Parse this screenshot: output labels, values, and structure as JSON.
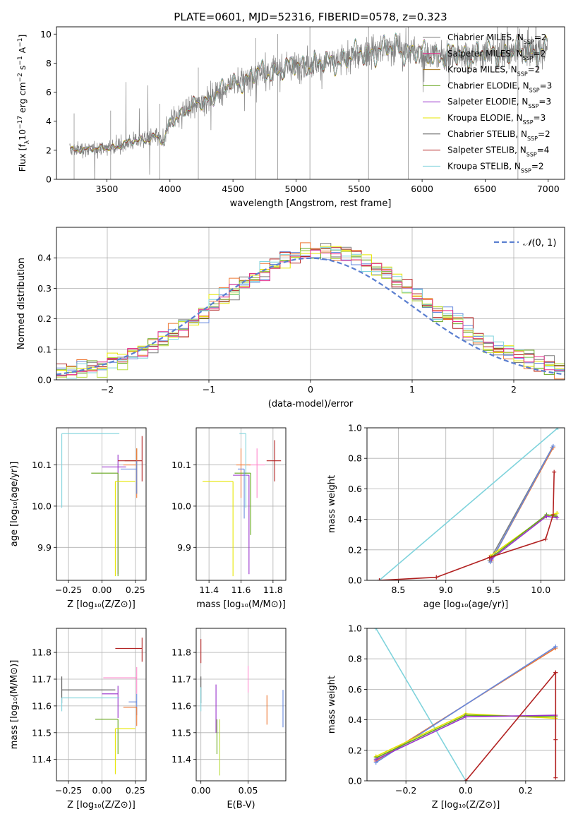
{
  "colors": {
    "Chabrier MILES": "#7f7f7f",
    "Salpeter MILES": "#e7298a",
    "Kroupa MILES": "#a6761d",
    "Chabrier ELODIE": "#66a61e",
    "Salpeter ELODIE": "#9932cc",
    "Kroupa ELODIE": "#e6e600",
    "Chabrier STELIB": "#555555",
    "Salpeter STELIB": "#b22222",
    "Kroupa STELIB": "#7fd3dc",
    "extra1": "#ee7733",
    "extra2": "#6688dd",
    "extra3": "#ff88cc",
    "extra4": "#bbdd44",
    "gauss": "#5b7fd0"
  },
  "chart_data": [
    {
      "id": "spectrum",
      "type": "line",
      "title": "PLATE=0601, MJD=52316, FIBERID=0578, z=0.323",
      "xlabel": "wavelength [Angstrom, rest frame]",
      "ylabel": "Flux [f_λ 10^-17 erg cm^-2 s^-1 A^-1]",
      "xlim": [
        3100,
        7130
      ],
      "ylim": [
        0,
        10.5
      ],
      "xticks": [
        3500,
        4000,
        4500,
        5000,
        5500,
        6000,
        6500,
        7000
      ],
      "yticks": [
        0,
        2,
        4,
        6,
        8,
        10
      ],
      "anchors_x": [
        3200,
        3300,
        3400,
        3500,
        3600,
        3700,
        3800,
        3900,
        3950,
        4000,
        4100,
        4200,
        4300,
        4400,
        4500,
        4600,
        4700,
        4800,
        4900,
        5000,
        5100,
        5200,
        5300,
        5400,
        5500,
        5600,
        5700,
        5800,
        5900,
        6000,
        6200,
        6400,
        6600,
        6800,
        7000
      ],
      "anchors_y": [
        2.0,
        2.1,
        2.05,
        2.2,
        2.3,
        2.6,
        2.8,
        2.9,
        2.4,
        4.0,
        4.6,
        5.1,
        5.5,
        6.1,
        6.6,
        6.9,
        7.3,
        7.4,
        7.6,
        7.8,
        8.0,
        7.9,
        8.1,
        8.3,
        8.6,
        8.8,
        8.9,
        9.1,
        8.8,
        8.6,
        8.5,
        8.6,
        8.7,
        8.8,
        8.9
      ],
      "legend": [
        {
          "name": "Chabrier MILES, N_SSP=2",
          "key": "Chabrier MILES"
        },
        {
          "name": "Salpeter MILES, N_SSP=2",
          "key": "Salpeter MILES"
        },
        {
          "name": "Kroupa MILES, N_SSP=2",
          "key": "Kroupa MILES"
        },
        {
          "name": "Chabrier ELODIE, N_SSP=3",
          "key": "Chabrier ELODIE"
        },
        {
          "name": "Salpeter ELODIE, N_SSP=3",
          "key": "Salpeter ELODIE"
        },
        {
          "name": "Kroupa ELODIE, N_SSP=3",
          "key": "Kroupa ELODIE"
        },
        {
          "name": "Chabrier STELIB, N_SSP=2",
          "key": "Chabrier STELIB"
        },
        {
          "name": "Salpeter STELIB, N_SSP=4",
          "key": "Salpeter STELIB"
        },
        {
          "name": "Kroupa STELIB, N_SSP=2",
          "key": "Kroupa STELIB"
        }
      ]
    },
    {
      "id": "residuals",
      "type": "histogram",
      "xlabel": "(data-model)/error",
      "ylabel": "Normed distribution",
      "xlim": [
        -2.5,
        2.5
      ],
      "ylim": [
        0,
        0.5
      ],
      "xticks": [
        -2,
        -1,
        0,
        1,
        2
      ],
      "yticks": [
        0.0,
        0.1,
        0.2,
        0.3,
        0.4
      ],
      "legend": "N(0,1)",
      "bin_width": 0.1,
      "bin_start": -2.5
    },
    {
      "id": "age_Z",
      "type": "errorbar",
      "xlabel": "Z [log10(Z/Z⊙)]",
      "ylabel": "age [log10(age/yr)]",
      "xlim": [
        -0.34,
        0.33
      ],
      "ylim": [
        9.82,
        10.19
      ],
      "xticks": [
        -0.25,
        0.0,
        0.25
      ],
      "yticks": [
        9.9,
        10.0,
        10.1
      ],
      "points": [
        {
          "x": -0.3,
          "y": 10.176,
          "xerr": [
            0.0,
            0.43
          ],
          "yerr": [
            0.18,
            0.0
          ],
          "key": "Kroupa STELIB"
        },
        {
          "x": 0.26,
          "y": 10.11,
          "xerr": [
            0.09,
            0.0
          ],
          "yerr": [
            0.08,
            0.03
          ],
          "key": "Kroupa MILES"
        },
        {
          "x": 0.12,
          "y": 10.095,
          "xerr": [
            0.12,
            0.06
          ],
          "yerr": [
            0.26,
            0.03
          ],
          "key": "Salpeter ELODIE"
        },
        {
          "x": 0.12,
          "y": 10.08,
          "xerr": [
            0.2,
            0.0
          ],
          "yerr": [
            0.25,
            0.0
          ],
          "key": "Chabrier ELODIE"
        },
        {
          "x": 0.1,
          "y": 10.06,
          "xerr": [
            0.0,
            0.15
          ],
          "yerr": [
            0.23,
            0.0
          ],
          "key": "Kroupa ELODIE"
        },
        {
          "x": 0.3,
          "y": 10.11,
          "xerr": [
            0.18,
            0.0
          ],
          "yerr": [
            0.05,
            0.06
          ],
          "key": "Salpeter STELIB"
        },
        {
          "x": 0.26,
          "y": 10.1,
          "xerr": [
            0.1,
            0.0
          ],
          "yerr": [
            0.08,
            0.04
          ],
          "key": "extra1"
        },
        {
          "x": 0.26,
          "y": 10.09,
          "xerr": [
            0.12,
            0.0
          ],
          "yerr": [
            0.06,
            0.02
          ],
          "key": "extra2"
        }
      ]
    },
    {
      "id": "age_mass",
      "type": "errorbar",
      "xlabel": "mass [log10(M/M⊙)]",
      "yticks": [
        9.9,
        10.0,
        10.1
      ],
      "xticks": [
        11.4,
        11.6,
        11.8
      ],
      "xlim": [
        11.32,
        11.88
      ],
      "ylim": [
        9.82,
        10.19
      ],
      "points": [
        {
          "x": 11.81,
          "y": 10.11,
          "xerr": [
            0.05,
            0.04
          ],
          "yerr": [
            0.05,
            0.05
          ],
          "key": "Salpeter STELIB"
        },
        {
          "x": 11.7,
          "y": 10.1,
          "xerr": [
            0.05,
            0.05
          ],
          "yerr": [
            0.08,
            0.04
          ],
          "key": "extra3"
        },
        {
          "x": 11.65,
          "y": 10.075,
          "xerr": [
            0.1,
            0.0
          ],
          "yerr": [
            0.24,
            0.0
          ],
          "key": "Salpeter ELODIE"
        },
        {
          "x": 11.6,
          "y": 10.1,
          "xerr": [
            0.03,
            0.06
          ],
          "yerr": [
            0.08,
            0.04
          ],
          "key": "extra1"
        },
        {
          "x": 11.63,
          "y": 10.176,
          "xerr": [
            0.04,
            0.0
          ],
          "yerr": [
            0.18,
            0.0
          ],
          "key": "Kroupa STELIB"
        },
        {
          "x": 11.55,
          "y": 10.06,
          "xerr": [
            0.19,
            0.0
          ],
          "yerr": [
            0.23,
            0.0
          ],
          "key": "Kroupa ELODIE"
        },
        {
          "x": 11.66,
          "y": 10.08,
          "xerr": [
            0.1,
            0.0
          ],
          "yerr": [
            0.15,
            0.0
          ],
          "key": "Chabrier ELODIE"
        },
        {
          "x": 11.62,
          "y": 10.09,
          "xerr": [
            0.04,
            0.0
          ],
          "yerr": [
            0.12,
            0.0
          ],
          "key": "extra2"
        }
      ]
    },
    {
      "id": "mw_age",
      "type": "line",
      "xlabel": "age [log10(age/yr)]",
      "ylabel": "mass weight",
      "xlim": [
        8.17,
        10.25
      ],
      "ylim": [
        0,
        1.0
      ],
      "xticks": [
        8.5,
        9.0,
        9.5,
        10.0
      ],
      "yticks": [
        0.0,
        0.2,
        0.4,
        0.6,
        0.8,
        1.0
      ],
      "series": [
        {
          "key": "Kroupa STELIB",
          "x": [
            8.3,
            10.18
          ],
          "y": [
            0.0,
            1.0
          ]
        },
        {
          "key": "Chabrier MILES",
          "x": [
            9.46,
            10.12
          ],
          "y": [
            0.13,
            0.87
          ]
        },
        {
          "key": "extra1",
          "x": [
            9.48,
            10.13
          ],
          "y": [
            0.13,
            0.87
          ]
        },
        {
          "key": "extra2",
          "x": [
            9.47,
            10.13
          ],
          "y": [
            0.12,
            0.88
          ]
        },
        {
          "key": "Kroupa ELODIE",
          "x": [
            9.47,
            10.05,
            10.17
          ],
          "y": [
            0.16,
            0.42,
            0.44
          ]
        },
        {
          "key": "Chabrier ELODIE",
          "x": [
            9.48,
            10.06,
            10.16
          ],
          "y": [
            0.15,
            0.43,
            0.42
          ]
        },
        {
          "key": "Salpeter ELODIE",
          "x": [
            9.48,
            10.06,
            10.17
          ],
          "y": [
            0.14,
            0.42,
            0.41
          ]
        },
        {
          "key": "Salpeter STELIB",
          "x": [
            8.3,
            8.9,
            9.46,
            10.05,
            10.13,
            10.14
          ],
          "y": [
            0.0,
            0.02,
            0.15,
            0.27,
            0.43,
            0.71
          ]
        }
      ]
    },
    {
      "id": "mass_Z",
      "type": "errorbar",
      "xlabel": "Z [log10(Z/Z⊙)]",
      "ylabel": "mass [log10(M/M⊙)]",
      "xlim": [
        -0.34,
        0.33
      ],
      "ylim": [
        11.32,
        11.89
      ],
      "xticks": [
        -0.25,
        0.0,
        0.25
      ],
      "yticks": [
        11.4,
        11.5,
        11.6,
        11.7,
        11.8
      ],
      "points": [
        {
          "x": 0.3,
          "y": 11.815,
          "xerr": [
            0.2,
            0.0
          ],
          "yerr": [
            0.05,
            0.04
          ],
          "key": "Salpeter STELIB"
        },
        {
          "x": 0.26,
          "y": 11.705,
          "xerr": [
            0.25,
            0.0
          ],
          "yerr": [
            0.06,
            0.04
          ],
          "key": "extra3"
        },
        {
          "x": -0.3,
          "y": 11.66,
          "xerr": [
            0.0,
            0.4
          ],
          "yerr": [
            0.05,
            0.05
          ],
          "key": "Chabrier STELIB"
        },
        {
          "x": 0.12,
          "y": 11.645,
          "xerr": [
            0.12,
            0.0
          ],
          "yerr": [
            0.09,
            0.03
          ],
          "key": "Salpeter ELODIE"
        },
        {
          "x": -0.3,
          "y": 11.63,
          "xerr": [
            0.0,
            0.43
          ],
          "yerr": [
            0.05,
            0.0
          ],
          "key": "Kroupa STELIB"
        },
        {
          "x": 0.26,
          "y": 11.615,
          "xerr": [
            0.06,
            0.0
          ],
          "yerr": [
            0.05,
            0.03
          ],
          "key": "extra2"
        },
        {
          "x": 0.26,
          "y": 11.595,
          "xerr": [
            0.1,
            0.0
          ],
          "yerr": [
            0.07,
            0.0
          ],
          "key": "extra1"
        },
        {
          "x": 0.12,
          "y": 11.55,
          "xerr": [
            0.17,
            0.0
          ],
          "yerr": [
            0.13,
            0.0
          ],
          "key": "Chabrier ELODIE"
        },
        {
          "x": 0.1,
          "y": 11.515,
          "xerr": [
            0.0,
            0.15
          ],
          "yerr": [
            0.17,
            0.0
          ],
          "key": "Kroupa ELODIE"
        }
      ]
    },
    {
      "id": "mass_ebv",
      "type": "errorbar",
      "xlabel": "E(B-V)",
      "xlim": [
        -0.005,
        0.09
      ],
      "ylim": [
        11.32,
        11.89
      ],
      "xticks": [
        0.0,
        0.05
      ],
      "yticks": [
        11.4,
        11.5,
        11.6,
        11.7,
        11.8
      ],
      "points": [
        {
          "x": 0.0,
          "y": 11.81,
          "xerr": [
            0,
            0
          ],
          "yerr": [
            0.05,
            0.04
          ],
          "key": "Salpeter STELIB"
        },
        {
          "x": 0.0,
          "y": 11.66,
          "xerr": [
            0,
            0
          ],
          "yerr": [
            0.05,
            0.05
          ],
          "key": "Chabrier STELIB"
        },
        {
          "x": 0.0,
          "y": 11.63,
          "xerr": [
            0,
            0
          ],
          "yerr": [
            0.05,
            0.04
          ],
          "key": "Kroupa STELIB"
        },
        {
          "x": 0.016,
          "y": 11.6,
          "xerr": [
            0,
            0
          ],
          "yerr": [
            0.1,
            0.08
          ],
          "key": "Salpeter ELODIE"
        },
        {
          "x": 0.017,
          "y": 11.55,
          "xerr": [
            0,
            0
          ],
          "yerr": [
            0.13,
            0.0
          ],
          "key": "Chabrier ELODIE"
        },
        {
          "x": 0.02,
          "y": 11.5,
          "xerr": [
            0,
            0
          ],
          "yerr": [
            0.16,
            0.05
          ],
          "key": "extra4"
        },
        {
          "x": 0.05,
          "y": 11.7,
          "xerr": [
            0,
            0
          ],
          "yerr": [
            0.05,
            0.05
          ],
          "key": "extra3"
        },
        {
          "x": 0.07,
          "y": 11.59,
          "xerr": [
            0,
            0
          ],
          "yerr": [
            0.06,
            0.05
          ],
          "key": "extra1"
        },
        {
          "x": 0.087,
          "y": 11.59,
          "xerr": [
            0,
            0
          ],
          "yerr": [
            0.07,
            0.07
          ],
          "key": "extra2"
        }
      ]
    },
    {
      "id": "mw_Z",
      "type": "line",
      "xlabel": "Z [log10(Z/Z⊙)]",
      "ylabel": "mass weight",
      "xlim": [
        -0.33,
        0.33
      ],
      "ylim": [
        0,
        1.0
      ],
      "xticks": [
        -0.2,
        0.0,
        0.2
      ],
      "yticks": [
        0.0,
        0.2,
        0.4,
        0.6,
        0.8,
        1.0
      ],
      "series": [
        {
          "key": "Kroupa STELIB",
          "x": [
            -0.3,
            0.0
          ],
          "y": [
            1.0,
            0.0
          ]
        },
        {
          "key": "extra1",
          "x": [
            -0.3,
            0.3
          ],
          "y": [
            0.13,
            0.87
          ]
        },
        {
          "key": "extra2",
          "x": [
            -0.3,
            0.3
          ],
          "y": [
            0.12,
            0.88
          ]
        },
        {
          "key": "Kroupa ELODIE",
          "x": [
            -0.3,
            0.0,
            0.3
          ],
          "y": [
            0.16,
            0.44,
            0.41
          ]
        },
        {
          "key": "Chabrier ELODIE",
          "x": [
            -0.3,
            0.0,
            0.3
          ],
          "y": [
            0.15,
            0.43,
            0.42
          ]
        },
        {
          "key": "Salpeter ELODIE",
          "x": [
            -0.3,
            0.0,
            0.3
          ],
          "y": [
            0.14,
            0.42,
            0.43
          ]
        },
        {
          "key": "Salpeter STELIB",
          "x": [
            0.0,
            0.3,
            0.3,
            0.3,
            0.3
          ],
          "y": [
            0.0,
            0.71,
            0.27,
            0.02,
            0.71
          ]
        }
      ]
    }
  ]
}
